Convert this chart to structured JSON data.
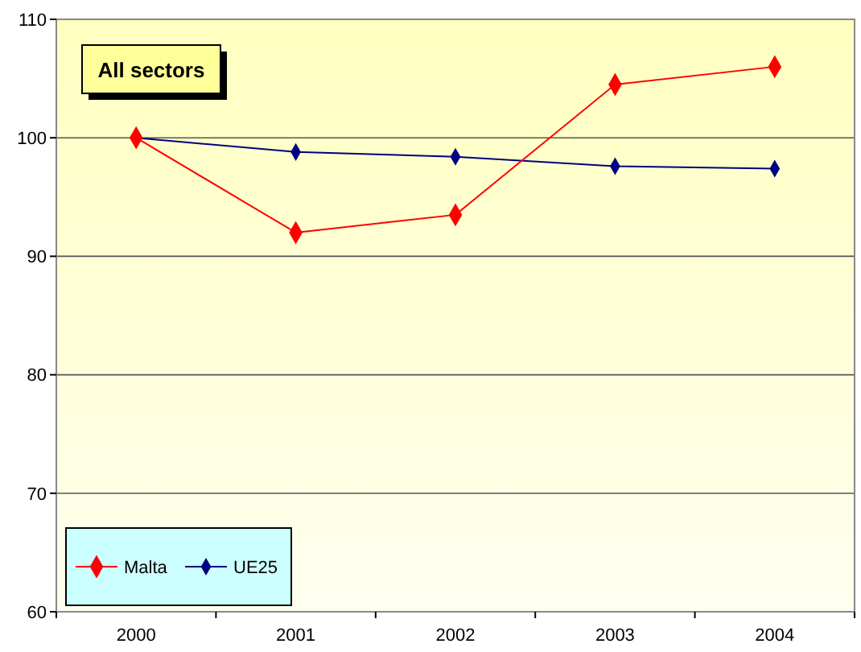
{
  "chart_data": {
    "type": "line",
    "title": "All sectors",
    "categories": [
      "2000",
      "2001",
      "2002",
      "2003",
      "2004"
    ],
    "series": [
      {
        "name": "Malta",
        "color": "#ff0000",
        "values": [
          100,
          92.0,
          93.5,
          104.5,
          106.0
        ]
      },
      {
        "name": "UE25",
        "color": "#000080",
        "values": [
          100,
          98.8,
          98.4,
          97.6,
          97.4
        ]
      }
    ],
    "ylim": [
      60,
      110
    ],
    "yticks": [
      60,
      70,
      80,
      90,
      100,
      110
    ],
    "grid": "y",
    "legend": "bottom left",
    "marker": "diamond",
    "line_style": "solid"
  }
}
